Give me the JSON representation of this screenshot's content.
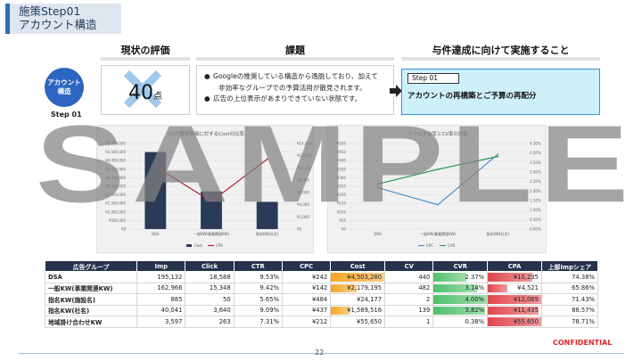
{
  "title": {
    "line1": "施策Step01",
    "line2": "アカウント構造"
  },
  "columns": {
    "eval": "現状の評価",
    "issue": "課題",
    "action": "与件達成に向けて実施すること"
  },
  "step": {
    "circle_line1": "アカウント",
    "circle_line2": "構造",
    "label": "Step 01"
  },
  "evaluation": {
    "score": "40",
    "unit": "点"
  },
  "issues": [
    {
      "bullet": "●",
      "text": "Googleの推奨している構造から逸脱しており、加えて",
      "sub": "非効率なグループでの予算活用が散見されます。"
    },
    {
      "bullet": "●",
      "text": "広告の上位表示があまりできていない状態です。"
    }
  ],
  "action": {
    "tag": "Step 01",
    "text": "アカウントの再構築とご予算の再配分"
  },
  "watermark": "SAMPLE",
  "chart_data": [
    {
      "type": "bar",
      "title": "CVの獲得単価に対するCostの比率",
      "categories": [
        "DSA",
        "一般KW(事業関連KW)",
        "指名KW(社名)"
      ],
      "series": [
        {
          "name": "Cost",
          "type": "bar",
          "values": [
            4500000,
            2200000,
            1590000
          ]
        },
        {
          "name": "CPA",
          "type": "line",
          "axis": "right",
          "values": [
            10235,
            4521,
            11435
          ]
        }
      ],
      "ylim": [
        0,
        5000000
      ],
      "y_ticks": [
        "¥5,000,000",
        "¥4,500,000",
        "¥4,000,000",
        "¥3,500,000",
        "¥3,000,000",
        "¥2,500,000",
        "¥2,000,000",
        "¥1,500,000",
        "¥1,000,000",
        "¥500,000",
        "¥0"
      ],
      "y2lim": [
        0,
        14000
      ],
      "y2_ticks": [
        "¥14,000",
        "¥12,000",
        "¥10,000",
        "¥8,000",
        "¥6,000",
        "¥4,000",
        "¥2,000",
        "¥0"
      ],
      "colors": {
        "Cost": "#2b3a55",
        "CPA": "#b8232f"
      }
    },
    {
      "type": "line",
      "title": "クリック効率とCV率の比較",
      "categories": [
        "DSA",
        "一般KW(事業関連KW)",
        "指名KW(社名)"
      ],
      "series": [
        {
          "name": "CPC",
          "values": [
            242,
            142,
            437
          ]
        },
        {
          "name": "CVR",
          "axis": "right",
          "values": [
            2.37,
            3.14,
            3.82
          ]
        }
      ],
      "ylim": [
        0,
        500
      ],
      "y_ticks": [
        "¥500",
        "¥450",
        "¥400",
        "¥350",
        "¥300",
        "¥250",
        "¥200",
        "¥150",
        "¥100",
        "¥50",
        "¥0"
      ],
      "y2lim": [
        0,
        4.5
      ],
      "y2_ticks": [
        "4.50%",
        "4.00%",
        "3.50%",
        "3.00%",
        "2.50%",
        "2.00%",
        "1.50%",
        "1.00%",
        "0.50%",
        "0.00%"
      ],
      "colors": {
        "CPC": "#4a90d0",
        "CVR": "#2a9a55"
      }
    }
  ],
  "table": {
    "headers": [
      "広告グループ",
      "Imp",
      "Click",
      "CTR",
      "CPC",
      "Cost",
      "CV",
      "CVR",
      "CPA",
      "上部Impシェア"
    ],
    "rows": [
      {
        "cells": [
          "DSA",
          "195,132",
          "18,588",
          "9.53%",
          "¥242",
          "¥4,503,280",
          "440",
          "2.37%",
          "¥10,235",
          "74.38%"
        ],
        "cost_frac": 1.0,
        "cvr_frac": 0.62,
        "cpa_frac": 0.84
      },
      {
        "cells": [
          "一般KW(事業関連KW)",
          "162,966",
          "15,348",
          "9.42%",
          "¥142",
          "¥2,179,195",
          "482",
          "3.14%",
          "¥4,521",
          "65.86%"
        ],
        "cost_frac": 0.48,
        "cvr_frac": 0.82,
        "cpa_frac": 0.37
      },
      {
        "cells": [
          "指名KW(施設名)",
          "885",
          "50",
          "5.65%",
          "¥484",
          "¥24,177",
          "2",
          "4.00%",
          "¥12,089",
          "71.43%"
        ],
        "cost_frac": 0.0,
        "cvr_frac": 1.0,
        "cpa_frac": 1.0
      },
      {
        "cells": [
          "指名KW(社名)",
          "40,041",
          "3,640",
          "9.09%",
          "¥437",
          "¥1,589,516",
          "139",
          "3.82%",
          "¥11,435",
          "88.57%"
        ],
        "cost_frac": 0.35,
        "cvr_frac": 0.96,
        "cpa_frac": 0.95
      },
      {
        "cells": [
          "地域掛け合わせKW",
          "3,597",
          "263",
          "7.31%",
          "¥212",
          "¥55,650",
          "1",
          "0.38%",
          "¥55,650",
          "78.71%"
        ],
        "cost_frac": 0.0,
        "cvr_frac": 0.0,
        "cpa_frac": 1.0
      }
    ]
  },
  "footer": {
    "confidential": "CONFIDENTIAL",
    "page": "22"
  },
  "colors": {
    "accent": "#2c64c2",
    "header": "#25334d",
    "cost": "#f5a623",
    "cvr": "#4fbf6a",
    "cpa": "#e0454c"
  }
}
